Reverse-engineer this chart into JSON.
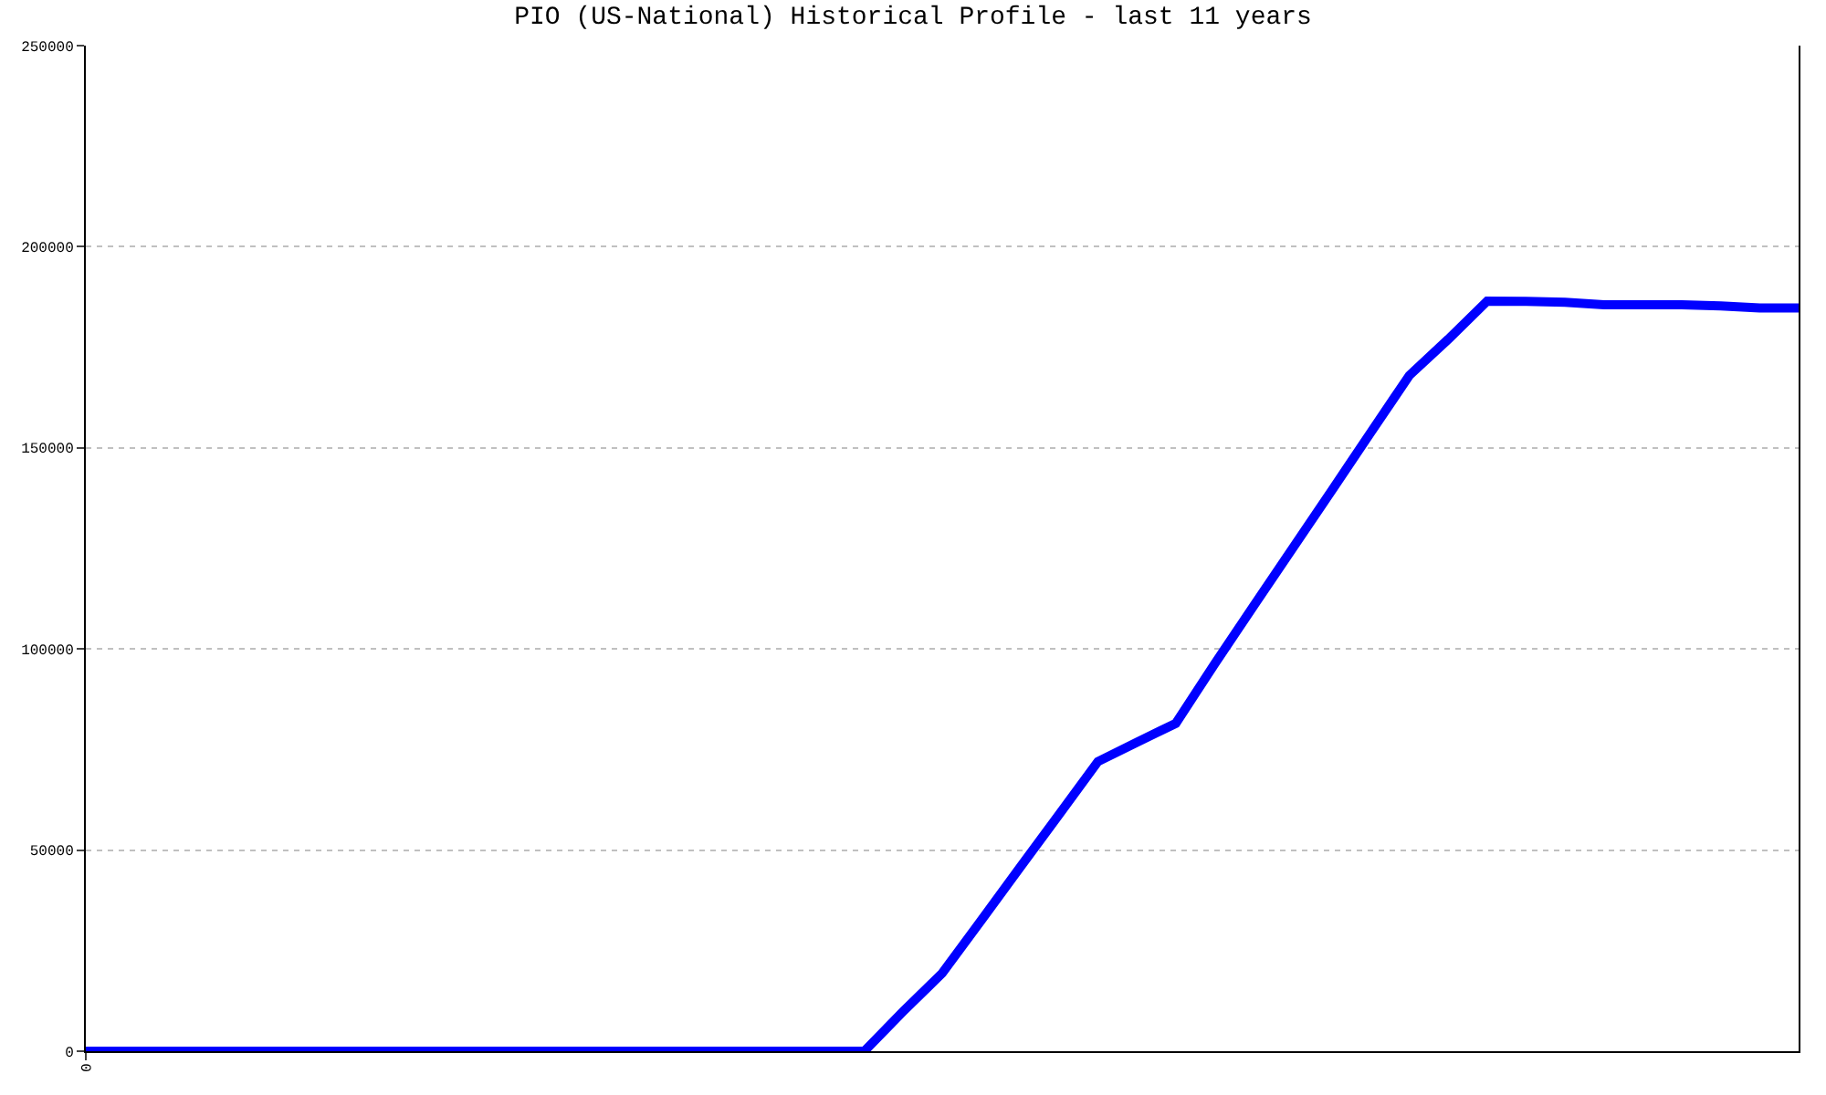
{
  "chart_data": {
    "type": "line",
    "title": "PIO (US-National) Historical Profile - last 11 years",
    "categories": [
      "0",
      null,
      null,
      null,
      null,
      null,
      null,
      null,
      null,
      null,
      null,
      null,
      null,
      null,
      null,
      null,
      null,
      null,
      null,
      null,
      null,
      null,
      null,
      null,
      null,
      null,
      null,
      null,
      null,
      null,
      null,
      null,
      null,
      null,
      null,
      null,
      null,
      null,
      null,
      null,
      null,
      null,
      null,
      null,
      null
    ],
    "series": [
      {
        "color": "#0000ff",
        "values": [
          0,
          0,
          0,
          0,
          0,
          0,
          0,
          0,
          0,
          0,
          0,
          0,
          0,
          0,
          0,
          0,
          0,
          0,
          0,
          0,
          0,
          9900,
          19400,
          32500,
          45700,
          58800,
          72000,
          76800,
          81500,
          96300,
          110700,
          125000,
          139300,
          153700,
          168000,
          177000,
          186500,
          186400,
          186200,
          185600,
          185600,
          185600,
          185300,
          184800,
          184800
        ]
      }
    ],
    "ylim": [
      0,
      250000
    ],
    "yticks": [
      0,
      50000,
      100000,
      150000,
      200000,
      250000
    ],
    "grid": "y",
    "marker": "none",
    "line_style": "solid"
  }
}
